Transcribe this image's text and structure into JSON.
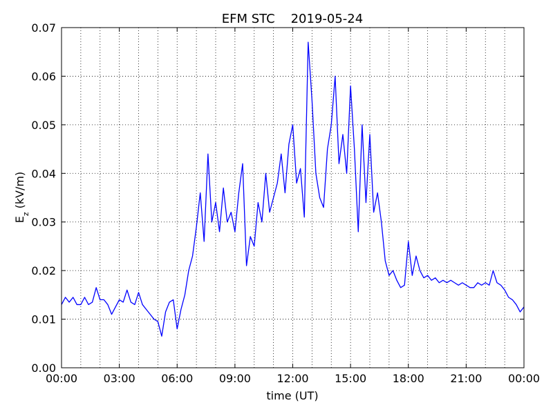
{
  "chart_data": {
    "type": "line",
    "title": "EFM STC    2019-05-24",
    "x_label": "time (UT)",
    "y_label": {
      "symbol": "E",
      "subscript": "z",
      "unit": "(kV/m)"
    },
    "color": "#0000ff",
    "grid": true,
    "xlim": [
      0,
      24
    ],
    "xticks": [
      {
        "value": 0,
        "label": "00:00"
      },
      {
        "value": 3,
        "label": "03:00"
      },
      {
        "value": 6,
        "label": "06:00"
      },
      {
        "value": 9,
        "label": "09:00"
      },
      {
        "value": 12,
        "label": "12:00"
      },
      {
        "value": 15,
        "label": "15:00"
      },
      {
        "value": 18,
        "label": "18:00"
      },
      {
        "value": 21,
        "label": "21:00"
      },
      {
        "value": 24,
        "label": "00:00"
      }
    ],
    "x_minor_ticks": [
      1,
      2,
      4,
      5,
      7,
      8,
      10,
      11,
      13,
      14,
      16,
      17,
      19,
      20,
      22,
      23
    ],
    "ylim": [
      0,
      0.07
    ],
    "yticks": [
      {
        "value": 0,
        "label": "0.00"
      },
      {
        "value": 0.01,
        "label": "0.01"
      },
      {
        "value": 0.02,
        "label": "0.02"
      },
      {
        "value": 0.03,
        "label": "0.03"
      },
      {
        "value": 0.04,
        "label": "0.04"
      },
      {
        "value": 0.05,
        "label": "0.05"
      },
      {
        "value": 0.06,
        "label": "0.06"
      },
      {
        "value": 0.07,
        "label": "0.07"
      }
    ],
    "x": [
      0,
      0.2,
      0.4,
      0.6,
      0.8,
      1,
      1.2,
      1.4,
      1.6,
      1.8,
      2,
      2.2,
      2.4,
      2.6,
      2.8,
      3,
      3.2,
      3.4,
      3.6,
      3.8,
      4,
      4.2,
      4.4,
      4.6,
      4.8,
      5,
      5.2,
      5.4,
      5.6,
      5.8,
      6,
      6.2,
      6.4,
      6.6,
      6.8,
      7,
      7.2,
      7.4,
      7.6,
      7.8,
      8,
      8.2,
      8.4,
      8.6,
      8.8,
      9,
      9.2,
      9.4,
      9.6,
      9.8,
      10,
      10.2,
      10.4,
      10.6,
      10.8,
      11,
      11.2,
      11.4,
      11.6,
      11.8,
      12,
      12.2,
      12.4,
      12.6,
      12.8,
      13,
      13.2,
      13.4,
      13.6,
      13.8,
      14,
      14.2,
      14.4,
      14.6,
      14.8,
      15,
      15.2,
      15.4,
      15.6,
      15.8,
      16,
      16.2,
      16.4,
      16.6,
      16.8,
      17,
      17.2,
      17.4,
      17.6,
      17.8,
      18,
      18.2,
      18.4,
      18.6,
      18.8,
      19,
      19.2,
      19.4,
      19.6,
      19.8,
      20,
      20.2,
      20.4,
      20.6,
      20.8,
      21,
      21.2,
      21.4,
      21.6,
      21.8,
      22,
      22.2,
      22.4,
      22.6,
      22.8,
      23,
      23.2,
      23.4,
      23.6,
      23.8,
      24
    ],
    "values": [
      0.013,
      0.0145,
      0.0135,
      0.0145,
      0.013,
      0.013,
      0.0145,
      0.013,
      0.0135,
      0.0165,
      0.014,
      0.014,
      0.013,
      0.011,
      0.0125,
      0.014,
      0.0135,
      0.016,
      0.0135,
      0.013,
      0.0155,
      0.013,
      0.012,
      0.011,
      0.01,
      0.0095,
      0.0065,
      0.0115,
      0.0135,
      0.014,
      0.008,
      0.012,
      0.015,
      0.02,
      0.023,
      0.029,
      0.036,
      0.026,
      0.044,
      0.03,
      0.034,
      0.028,
      0.037,
      0.03,
      0.032,
      0.028,
      0.036,
      0.042,
      0.021,
      0.027,
      0.025,
      0.034,
      0.03,
      0.04,
      0.032,
      0.035,
      0.038,
      0.044,
      0.036,
      0.046,
      0.05,
      0.038,
      0.041,
      0.031,
      0.067,
      0.055,
      0.04,
      0.035,
      0.033,
      0.045,
      0.05,
      0.06,
      0.042,
      0.048,
      0.04,
      0.058,
      0.045,
      0.028,
      0.05,
      0.034,
      0.048,
      0.032,
      0.036,
      0.03,
      0.022,
      0.019,
      0.02,
      0.018,
      0.0165,
      0.017,
      0.026,
      0.019,
      0.023,
      0.02,
      0.0185,
      0.019,
      0.018,
      0.0185,
      0.0175,
      0.018,
      0.0175,
      0.018,
      0.0175,
      0.017,
      0.0175,
      0.017,
      0.0165,
      0.0165,
      0.0175,
      0.017,
      0.0175,
      0.017,
      0.02,
      0.0175,
      0.017,
      0.016,
      0.0145,
      0.014,
      0.013,
      0.0115,
      0.0125
    ]
  }
}
